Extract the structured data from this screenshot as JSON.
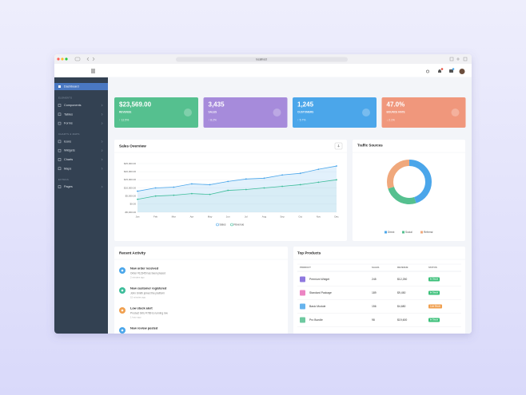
{
  "browser": {
    "url": "localhost"
  },
  "sidebar": {
    "active": "Dashboard",
    "sections": [
      {
        "label": "ELEMENTS",
        "items": [
          "Components",
          "Tables",
          "Forms"
        ]
      },
      {
        "label": "CHARTS & MAPS",
        "items": [
          "Icons",
          "Widgets",
          "Charts",
          "Maps"
        ]
      },
      {
        "label": "EXTRAS",
        "items": [
          "Pages"
        ]
      }
    ]
  },
  "cards": [
    {
      "value": "$23,569.00",
      "label": "REVENUE",
      "change": "↑ 12.5%",
      "color": "#55c08f"
    },
    {
      "value": "3,435",
      "label": "SALES",
      "change": "↑ 8.2%",
      "color": "#a68bdb"
    },
    {
      "value": "1,245",
      "label": "CUSTOMERS",
      "change": "↑ 5.7%",
      "color": "#4ba6ea"
    },
    {
      "value": "47.0%",
      "label": "BOUNCE RATE",
      "change": "↓ 2.1%",
      "color": "#f0977c"
    }
  ],
  "chart_data": [
    {
      "type": "line",
      "title": "Sales Overview",
      "categories": [
        "Jan",
        "Feb",
        "Mar",
        "Apr",
        "May",
        "Jun",
        "Jul",
        "Aug",
        "Sep",
        "Oct",
        "Nov",
        "Dec"
      ],
      "series": [
        {
          "name": "Sales",
          "color": "#4ba6ea",
          "values": [
            8000,
            10000,
            10500,
            12500,
            12000,
            14000,
            15500,
            16000,
            18000,
            19000,
            21500,
            23500
          ]
        },
        {
          "name": "Revenue",
          "color": "#3dbd9a",
          "values": [
            3000,
            5000,
            5500,
            6500,
            6000,
            8500,
            9000,
            10000,
            11000,
            12000,
            13500,
            15000
          ]
        }
      ],
      "ylim": [
        -5000,
        25000
      ],
      "yticks": [
        {
          "value": -5000,
          "label": "-$5,000.00"
        },
        {
          "value": 0,
          "label": "$0.00"
        },
        {
          "value": 5000,
          "label": "$5,000.00"
        },
        {
          "value": 10000,
          "label": "$10,000.00"
        },
        {
          "value": 15000,
          "label": "$15,000.00"
        },
        {
          "value": 20000,
          "label": "$20,000.00"
        },
        {
          "value": 25000,
          "label": "$25,000.00"
        }
      ],
      "grid": true
    },
    {
      "type": "pie",
      "title": "Traffic Sources",
      "categories": [
        "Direct",
        "Social",
        "Referral"
      ],
      "values": [
        45,
        25,
        30
      ],
      "colors": [
        "#4ba6ea",
        "#55c08f",
        "#f0a87c"
      ]
    }
  ],
  "recent_activity": {
    "title": "Recent Activity",
    "items": [
      {
        "title": "New order received",
        "desc": "Order #12345 has been placed",
        "time": "2 minutes ago",
        "color": "#4ba6ea"
      },
      {
        "title": "New customer registered",
        "desc": "John Smith joined the platform",
        "time": "15 minutes ago",
        "color": "#3dbd9a"
      },
      {
        "title": "Low stock alert",
        "desc": "Product SKU #789 is running low",
        "time": "1 hour ago",
        "color": "#f0a050"
      },
      {
        "title": "New review posted",
        "desc": "",
        "time": "",
        "color": "#4ba6ea"
      }
    ]
  },
  "top_products": {
    "title": "Top Products",
    "columns": [
      "PRODUCT",
      "SALES",
      "REVENUE",
      "STATUS"
    ],
    "rows": [
      [
        "Premium Widget",
        "245",
        "$12,250",
        "In Stock"
      ],
      [
        "Standard Package",
        "189",
        "$9,450",
        "In Stock"
      ],
      [
        "Basic Module",
        "156",
        "$4,680",
        "Low Stock"
      ],
      [
        "Pro Bundle",
        "98",
        "$19,600",
        "In Stock"
      ]
    ],
    "thumb_colors": [
      "#7b61d9",
      "#e96fb8",
      "#4ba6ea",
      "#55c08f"
    ]
  }
}
